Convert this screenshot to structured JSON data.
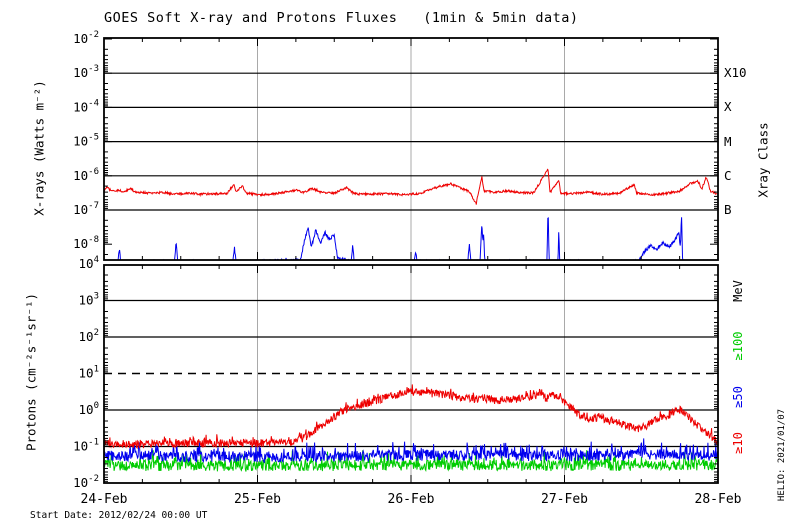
{
  "title": "GOES Soft X-ray and Protons Fluxes   (1min & 5min data)",
  "footer": {
    "start_date": "Start Date: 2012/02/24 00:00 UT"
  },
  "watermark": "HELIO: 2021/01/07",
  "colors": {
    "xray_long": "#ee0000",
    "xray_short": "#0000ee",
    "protons_ge10": "#ee0000",
    "protons_ge50": "#0000ee",
    "protons_ge100": "#00cc00",
    "grid_day_line": "#a9a9a9",
    "axis": "#000000"
  },
  "x_axis": {
    "tick_labels": [
      "24-Feb",
      "25-Feb",
      "26-Feb",
      "27-Feb",
      "28-Feb"
    ],
    "minor_tick_hours": 6,
    "span_days": 4
  },
  "chart_data": [
    {
      "id": "xray",
      "type": "line",
      "ylabel": "X-rays (Watts m⁻²)",
      "ylabel_right": "Xray Class",
      "y_ticks_exp": [
        -2,
        -3,
        -4,
        -5,
        -6,
        -7,
        -8
      ],
      "grid_exps_solid": [
        -3,
        -4,
        -5,
        -6,
        -7
      ],
      "grid_exps_dashed": [],
      "right_labels": [
        {
          "text": "X10",
          "exp": -3
        },
        {
          "text": "X",
          "exp": -4
        },
        {
          "text": "M",
          "exp": -5
        },
        {
          "text": "C",
          "exp": -6
        },
        {
          "text": "B",
          "exp": -7
        }
      ],
      "series": [
        {
          "name": "xray-short-channel",
          "color": "#0000ee",
          "samples": 1300,
          "noise_dec": 0.05,
          "spike_prob": 0,
          "spike_amp": 0,
          "anchors": [
            [
              0.0,
              3e-09
            ],
            [
              0.09,
              3e-09
            ],
            [
              0.1,
              7e-09
            ],
            [
              0.11,
              3e-09
            ],
            [
              0.46,
              3e-09
            ],
            [
              0.47,
              1.3e-08
            ],
            [
              0.48,
              3e-09
            ],
            [
              0.84,
              3e-09
            ],
            [
              0.85,
              8e-09
            ],
            [
              0.86,
              3e-09
            ],
            [
              1.28,
              3.4e-09
            ],
            [
              1.31,
              1.6e-08
            ],
            [
              1.33,
              3e-08
            ],
            [
              1.35,
              8e-09
            ],
            [
              1.38,
              2.6e-08
            ],
            [
              1.41,
              1e-08
            ],
            [
              1.44,
              2.2e-08
            ],
            [
              1.47,
              1.4e-08
            ],
            [
              1.5,
              2e-08
            ],
            [
              1.52,
              4e-09
            ],
            [
              1.61,
              3e-09
            ],
            [
              1.62,
              9e-09
            ],
            [
              1.63,
              3e-09
            ],
            [
              2.02,
              3e-09
            ],
            [
              2.03,
              6e-09
            ],
            [
              2.04,
              3e-09
            ],
            [
              2.37,
              3e-09
            ],
            [
              2.38,
              1.1e-08
            ],
            [
              2.39,
              3e-09
            ],
            [
              2.45,
              3e-09
            ],
            [
              2.462,
              4.5e-08
            ],
            [
              2.468,
              1e-08
            ],
            [
              2.474,
              2.2e-08
            ],
            [
              2.48,
              3e-09
            ],
            [
              2.885,
              3e-09
            ],
            [
              2.893,
              1.2e-07
            ],
            [
              2.9,
              3e-09
            ],
            [
              2.958,
              3e-09
            ],
            [
              2.963,
              3.2e-08
            ],
            [
              2.968,
              3e-09
            ],
            [
              3.48,
              3e-09
            ],
            [
              3.52,
              6e-09
            ],
            [
              3.56,
              9e-09
            ],
            [
              3.6,
              7e-09
            ],
            [
              3.64,
              1.1e-08
            ],
            [
              3.68,
              8e-09
            ],
            [
              3.72,
              1.3e-08
            ],
            [
              3.745,
              2.2e-08
            ],
            [
              3.755,
              8e-09
            ],
            [
              3.762,
              8.5e-08
            ],
            [
              3.77,
              3e-09
            ],
            [
              4.0,
              3e-09
            ]
          ]
        },
        {
          "name": "xray-long-channel",
          "color": "#ee0000",
          "samples": 1200,
          "noise_dec": 0.032,
          "spike_prob": 0,
          "spike_amp": 0,
          "anchors": [
            [
              0.0,
              3.4e-07
            ],
            [
              0.02,
              4.6e-07
            ],
            [
              0.05,
              3.6e-07
            ],
            [
              0.1,
              3.8e-07
            ],
            [
              0.13,
              3.2e-07
            ],
            [
              0.17,
              4.4e-07
            ],
            [
              0.2,
              3.4e-07
            ],
            [
              0.3,
              3.1e-07
            ],
            [
              0.38,
              3.3e-07
            ],
            [
              0.45,
              2.9e-07
            ],
            [
              0.55,
              3.1e-07
            ],
            [
              0.62,
              2.9e-07
            ],
            [
              0.7,
              3e-07
            ],
            [
              0.8,
              3e-07
            ],
            [
              0.845,
              5.6e-07
            ],
            [
              0.86,
              3.3e-07
            ],
            [
              0.9,
              5e-07
            ],
            [
              0.93,
              3.1e-07
            ],
            [
              1.0,
              2.8e-07
            ],
            [
              1.1,
              2.9e-07
            ],
            [
              1.25,
              3.8e-07
            ],
            [
              1.3,
              3.2e-07
            ],
            [
              1.36,
              4.3e-07
            ],
            [
              1.42,
              3.2e-07
            ],
            [
              1.5,
              3.1e-07
            ],
            [
              1.58,
              4.5e-07
            ],
            [
              1.63,
              3e-07
            ],
            [
              1.72,
              2.9e-07
            ],
            [
              1.85,
              3e-07
            ],
            [
              1.95,
              2.8e-07
            ],
            [
              2.05,
              3e-07
            ],
            [
              2.18,
              4.8e-07
            ],
            [
              2.26,
              5.8e-07
            ],
            [
              2.32,
              4.4e-07
            ],
            [
              2.38,
              3.5e-07
            ],
            [
              2.425,
              1.5e-07
            ],
            [
              2.44,
              3.4e-07
            ],
            [
              2.462,
              9.5e-07
            ],
            [
              2.475,
              3.6e-07
            ],
            [
              2.55,
              3.3e-07
            ],
            [
              2.63,
              3.6e-07
            ],
            [
              2.72,
              3.2e-07
            ],
            [
              2.8,
              3.2e-07
            ],
            [
              2.893,
              1.6e-06
            ],
            [
              2.905,
              3.2e-07
            ],
            [
              2.962,
              7.5e-07
            ],
            [
              2.975,
              3.1e-07
            ],
            [
              3.05,
              3e-07
            ],
            [
              3.15,
              3.3e-07
            ],
            [
              3.25,
              2.9e-07
            ],
            [
              3.35,
              3e-07
            ],
            [
              3.455,
              5.6e-07
            ],
            [
              3.47,
              3.1e-07
            ],
            [
              3.55,
              2.8e-07
            ],
            [
              3.65,
              3e-07
            ],
            [
              3.75,
              3.6e-07
            ],
            [
              3.82,
              6e-07
            ],
            [
              3.87,
              6.8e-07
            ],
            [
              3.895,
              4.2e-07
            ],
            [
              3.925,
              9.5e-07
            ],
            [
              3.95,
              3.6e-07
            ],
            [
              4.0,
              2.9e-07
            ]
          ]
        }
      ]
    },
    {
      "id": "protons",
      "type": "line",
      "ylabel": "Protons (cm⁻²s⁻¹sr⁻¹)",
      "ylabel_right": "MeV",
      "y_ticks_exp": [
        4,
        3,
        2,
        1,
        0,
        -1,
        -2
      ],
      "grid_exps_solid": [
        3,
        2,
        0,
        -1
      ],
      "grid_exps_dashed": [
        1
      ],
      "legend": [
        {
          "text": "MeV",
          "color": "#000000"
        },
        {
          "text": "≥100",
          "color": "#00cc00"
        },
        {
          "text": "≥50",
          "color": "#0000ee"
        },
        {
          "text": "≥10",
          "color": "#ee0000"
        }
      ],
      "series": [
        {
          "name": "protons-ge100MeV",
          "color": "#00cc00",
          "samples": 1100,
          "noise_dec": 0.15,
          "spike_prob": 0.2,
          "spike_amp": 0.3,
          "anchors": [
            [
              0.0,
              0.03
            ],
            [
              1.0,
              0.029
            ],
            [
              2.0,
              0.031
            ],
            [
              3.0,
              0.03
            ],
            [
              4.0,
              0.031
            ]
          ]
        },
        {
          "name": "protons-ge50MeV",
          "color": "#0000ee",
          "samples": 1100,
          "noise_dec": 0.15,
          "spike_prob": 0.2,
          "spike_amp": 0.32,
          "anchors": [
            [
              0.0,
              0.055
            ],
            [
              1.0,
              0.052
            ],
            [
              2.0,
              0.057
            ],
            [
              3.0,
              0.055
            ],
            [
              3.5,
              0.06
            ],
            [
              4.0,
              0.058
            ]
          ]
        },
        {
          "name": "protons-ge10MeV",
          "color": "#ee0000",
          "samples": 1150,
          "noise_dec": 0.11,
          "spike_prob": 0.15,
          "spike_amp": 0.15,
          "anchors": [
            [
              0.0,
              0.12
            ],
            [
              0.3,
              0.115
            ],
            [
              0.6,
              0.125
            ],
            [
              0.9,
              0.12
            ],
            [
              1.1,
              0.125
            ],
            [
              1.22,
              0.13
            ],
            [
              1.3,
              0.17
            ],
            [
              1.38,
              0.28
            ],
            [
              1.46,
              0.5
            ],
            [
              1.54,
              0.85
            ],
            [
              1.62,
              1.2
            ],
            [
              1.7,
              1.5
            ],
            [
              1.8,
              2.0
            ],
            [
              1.9,
              2.6
            ],
            [
              1.98,
              3.4
            ],
            [
              2.04,
              3.0
            ],
            [
              2.12,
              2.9
            ],
            [
              2.2,
              2.7
            ],
            [
              2.3,
              2.3
            ],
            [
              2.4,
              2.0
            ],
            [
              2.48,
              2.1
            ],
            [
              2.56,
              1.8
            ],
            [
              2.64,
              1.9
            ],
            [
              2.72,
              2.0
            ],
            [
              2.8,
              2.3
            ],
            [
              2.84,
              2.7
            ],
            [
              2.88,
              2.1
            ],
            [
              2.93,
              2.5
            ],
            [
              2.97,
              2.1
            ],
            [
              3.0,
              1.6
            ],
            [
              3.05,
              1.0
            ],
            [
              3.1,
              0.75
            ],
            [
              3.17,
              0.55
            ],
            [
              3.22,
              0.65
            ],
            [
              3.3,
              0.5
            ],
            [
              3.38,
              0.42
            ],
            [
              3.46,
              0.3
            ],
            [
              3.52,
              0.35
            ],
            [
              3.58,
              0.5
            ],
            [
              3.64,
              0.6
            ],
            [
              3.7,
              0.8
            ],
            [
              3.75,
              1.05
            ],
            [
              3.8,
              0.7
            ],
            [
              3.86,
              0.4
            ],
            [
              3.92,
              0.25
            ],
            [
              3.97,
              0.16
            ],
            [
              4.0,
              0.13
            ]
          ]
        }
      ]
    }
  ]
}
